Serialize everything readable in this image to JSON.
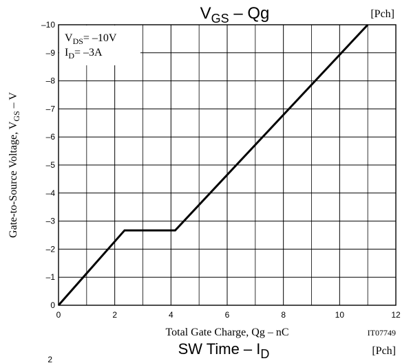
{
  "chart_data": {
    "type": "line",
    "title": {
      "main": "V",
      "sub": "GS",
      "rest": " – Qg"
    },
    "channel_tag": "[Pch]",
    "conditions": [
      {
        "main": "V",
        "sub": "DS",
        "rest": "= –10V"
      },
      {
        "main": "I",
        "sub": "D",
        "rest": "= –3A"
      }
    ],
    "xlabel": "Total Gate Charge, Qg  –  nC",
    "ylabel": {
      "main": "Gate-to-Source Voltage, V",
      "sub": "GS",
      "rest": "  –  V"
    },
    "xlim": [
      0,
      12
    ],
    "ylim": [
      0,
      -10
    ],
    "x_ticks": [
      "0",
      "2",
      "4",
      "6",
      "8",
      "10",
      "12"
    ],
    "y_ticks": [
      "0",
      "–1",
      "–2",
      "–3",
      "–4",
      "–5",
      "–6",
      "–7",
      "–8",
      "–9",
      "–10"
    ],
    "grid": true,
    "series": [
      {
        "x": [
          0,
          2.35,
          4.15,
          11.0
        ],
        "y": [
          0,
          -2.67,
          -2.67,
          -10
        ]
      }
    ],
    "figure_code": "IT07749"
  },
  "next_chart": {
    "title": {
      "main": "SW Time  –  I",
      "sub": "D"
    },
    "channel_tag": "[Pch]",
    "partial_tick": "2"
  }
}
